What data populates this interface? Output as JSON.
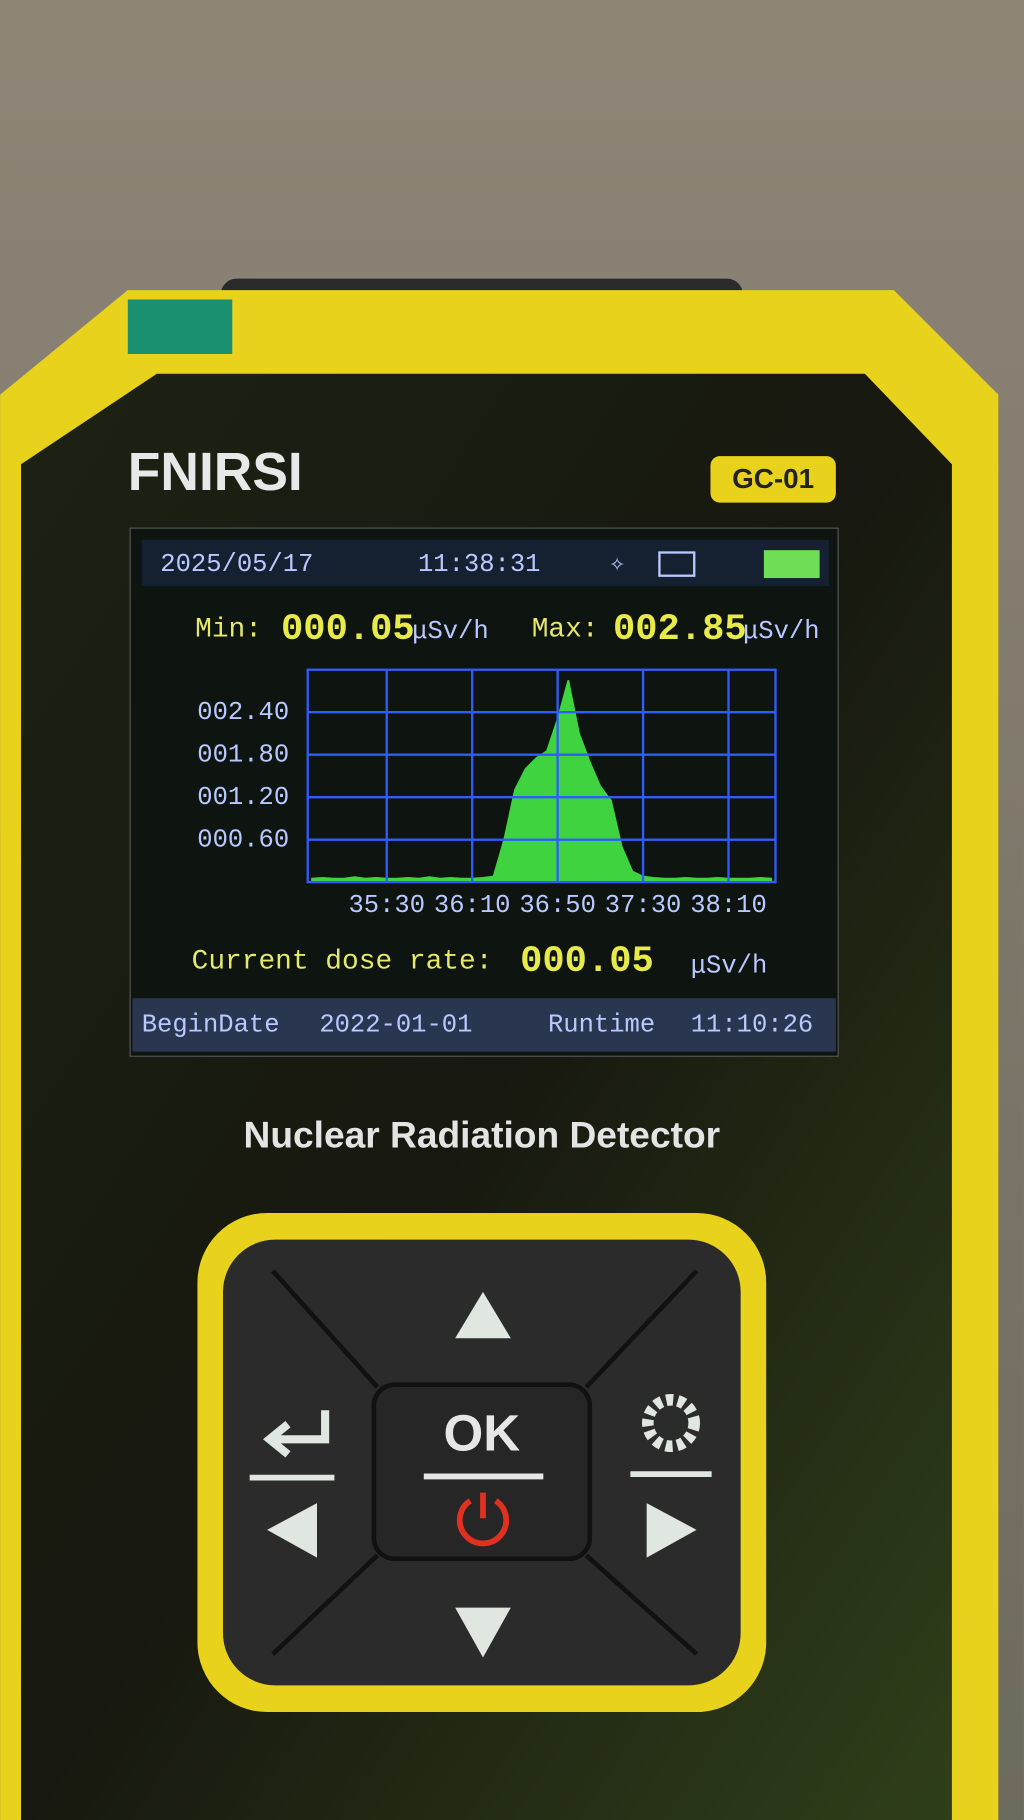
{
  "brand": "FNIRSI",
  "model": "GC-01",
  "screen": {
    "date": "2025/05/17",
    "time": "11:38:31",
    "min_label": "Min:",
    "min_value": "000.05",
    "max_label": "Max:",
    "max_value": "002.85",
    "unit": "μSv/h",
    "current_label": "Current dose rate:",
    "current_value": "000.05",
    "begin_label": "BeginDate",
    "begin_date": "2022-01-01",
    "runtime_label": "Runtime",
    "runtime": "11:10:26"
  },
  "chart_data": {
    "type": "area",
    "color": "#3fd43f",
    "grid": true,
    "grid_color": "#2f5cff",
    "x": [
      2095,
      2100,
      2105,
      2110,
      2115,
      2120,
      2125,
      2130,
      2135,
      2140,
      2145,
      2150,
      2155,
      2160,
      2165,
      2170,
      2175,
      2180,
      2185,
      2190,
      2195,
      2200,
      2205,
      2210,
      2215,
      2220,
      2225,
      2230,
      2235,
      2240,
      2245,
      2250,
      2255,
      2260,
      2265,
      2270,
      2275,
      2280,
      2285,
      2290,
      2295,
      2300,
      2305,
      2310
    ],
    "values": [
      0.05,
      0.06,
      0.05,
      0.05,
      0.07,
      0.05,
      0.06,
      0.05,
      0.05,
      0.06,
      0.05,
      0.07,
      0.05,
      0.06,
      0.05,
      0.05,
      0.06,
      0.08,
      0.6,
      1.3,
      1.6,
      1.75,
      1.85,
      2.3,
      2.85,
      2.1,
      1.7,
      1.35,
      1.15,
      0.5,
      0.15,
      0.08,
      0.06,
      0.05,
      0.05,
      0.06,
      0.05,
      0.05,
      0.06,
      0.05,
      0.05,
      0.05,
      0.06,
      0.05
    ],
    "xlim": [
      2093,
      2312
    ],
    "ylim": [
      0,
      3
    ],
    "xticks": [
      {
        "value": 2130,
        "label": "35:30"
      },
      {
        "value": 2170,
        "label": "36:10"
      },
      {
        "value": 2210,
        "label": "36:50"
      },
      {
        "value": 2250,
        "label": "37:30"
      },
      {
        "value": 2290,
        "label": "38:10"
      }
    ],
    "yticks": [
      {
        "value": 0.6,
        "label": "000.60"
      },
      {
        "value": 1.2,
        "label": "001.20"
      },
      {
        "value": 1.8,
        "label": "001.80"
      },
      {
        "value": 2.4,
        "label": "002.40"
      }
    ]
  },
  "product_name": "Nuclear Radiation Detector",
  "buttons": {
    "ok": "OK"
  }
}
